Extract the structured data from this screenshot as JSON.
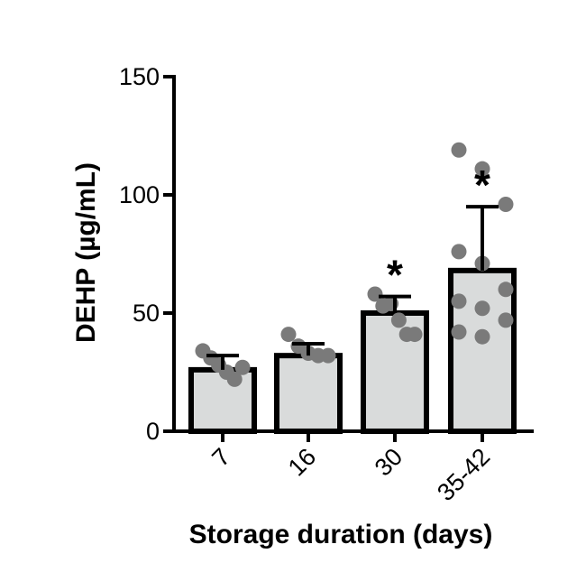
{
  "chart_data": {
    "type": "bar",
    "categories": [
      "7",
      "16",
      "30",
      "35-42"
    ],
    "values": [
      26,
      32,
      50,
      68
    ],
    "error_upper": [
      32,
      37,
      57,
      95
    ],
    "points": [
      [
        34,
        31,
        28,
        25,
        22,
        27
      ],
      [
        41,
        36,
        33,
        32,
        32
      ],
      [
        58,
        53,
        54,
        47,
        41,
        41
      ],
      [
        119,
        111,
        96,
        76,
        71,
        60,
        55,
        52,
        47,
        42,
        40
      ]
    ],
    "significant": [
      false,
      false,
      true,
      true
    ],
    "significance_marker": "*",
    "xlabel": "Storage duration (days)",
    "ylabel": "DEHP (µg/mL)",
    "ylim": [
      0,
      150
    ],
    "yticks": [
      "0",
      "50",
      "100",
      "150"
    ],
    "grid": false,
    "colors": {
      "bar_fill": "#d9dbdb",
      "bar_stroke": "#000000",
      "point": "#7a7a7a",
      "axis": "#000000"
    }
  }
}
